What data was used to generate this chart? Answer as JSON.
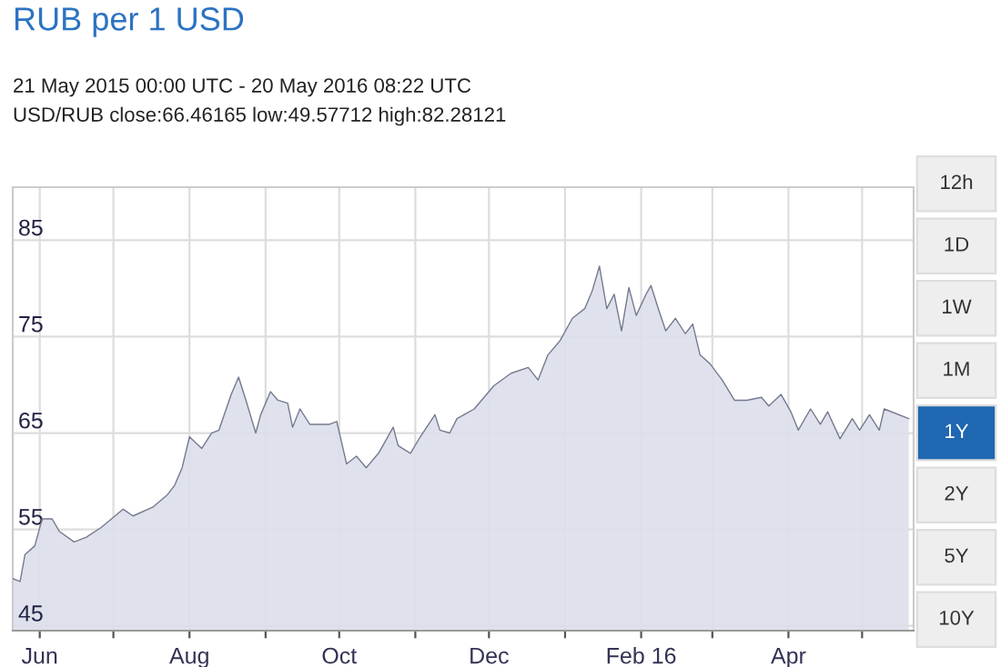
{
  "chart_data": [
    {
      "type": "area",
      "title": "RUB per 1 USD",
      "subtitle": "21 May 2015 00:00 UTC - 20 May 2016 08:22 UTC",
      "annotations": [
        "USD/RUB close:66.46165 low:49.57712 high:82.28121"
      ],
      "x": [
        "2015-05-21",
        "2015-05-24",
        "2015-05-26",
        "2015-05-30",
        "2015-06-02",
        "2015-06-06",
        "2015-06-09",
        "2015-06-15",
        "2015-06-20",
        "2015-06-26",
        "2015-07-05",
        "2015-07-09",
        "2015-07-17",
        "2015-07-23",
        "2015-07-26",
        "2015-07-29",
        "2015-08-01",
        "2015-08-06",
        "2015-08-10",
        "2015-08-13",
        "2015-08-18",
        "2015-08-21",
        "2015-08-24",
        "2015-08-28",
        "2015-08-30",
        "2015-09-03",
        "2015-09-06",
        "2015-09-10",
        "2015-09-12",
        "2015-09-15",
        "2015-09-19",
        "2015-09-27",
        "2015-09-30",
        "2015-10-04",
        "2015-10-08",
        "2015-10-12",
        "2015-10-17",
        "2015-10-23",
        "2015-10-25",
        "2015-10-30",
        "2015-11-03",
        "2015-11-09",
        "2015-11-11",
        "2015-11-15",
        "2015-11-18",
        "2015-11-25",
        "2015-12-03",
        "2015-12-10",
        "2015-12-17",
        "2015-12-21",
        "2015-12-25",
        "2015-12-30",
        "2016-01-04",
        "2016-01-09",
        "2016-01-12",
        "2016-01-15",
        "2016-01-18",
        "2016-01-21",
        "2016-01-24",
        "2016-01-27",
        "2016-01-30",
        "2016-02-03",
        "2016-02-05",
        "2016-02-08",
        "2016-02-11",
        "2016-02-15",
        "2016-02-19",
        "2016-02-22",
        "2016-02-25",
        "2016-02-29",
        "2016-03-05",
        "2016-03-10",
        "2016-03-15",
        "2016-03-21",
        "2016-03-24",
        "2016-03-29",
        "2016-04-02",
        "2016-04-05",
        "2016-04-10",
        "2016-04-14",
        "2016-04-17",
        "2016-04-22",
        "2016-04-27",
        "2016-04-30",
        "2016-05-04",
        "2016-05-08",
        "2016-05-10",
        "2016-05-20"
      ],
      "series": [
        {
          "color": "#747a8e",
          "values": [
            49.9,
            49.6,
            52.4,
            53.3,
            56.1,
            56.1,
            54.8,
            53.7,
            54.2,
            55.2,
            57.1,
            56.4,
            57.3,
            58.6,
            59.6,
            61.4,
            64.6,
            63.4,
            65.0,
            65.3,
            69.0,
            70.8,
            68.4,
            65.0,
            66.9,
            69.3,
            68.4,
            68.1,
            65.6,
            67.5,
            65.9,
            65.9,
            66.2,
            61.8,
            62.6,
            61.4,
            62.9,
            65.6,
            63.7,
            62.9,
            64.6,
            66.9,
            65.3,
            65.0,
            66.5,
            67.5,
            69.9,
            71.2,
            71.8,
            70.5,
            73.1,
            74.6,
            76.9,
            77.9,
            79.7,
            82.3,
            77.9,
            79.4,
            75.6,
            80.1,
            77.2,
            79.4,
            80.3,
            77.9,
            75.6,
            76.9,
            75.3,
            76.3,
            73.1,
            72.2,
            70.5,
            68.4,
            68.4,
            68.7,
            67.8,
            69.0,
            67.2,
            65.3,
            67.5,
            65.9,
            67.2,
            64.4,
            66.5,
            65.3,
            66.9,
            65.3,
            67.5,
            66.5
          ]
        }
      ],
      "xlim": [
        "2015-05-21",
        "2016-05-22"
      ],
      "xticks": [
        {
          "value": "2015-06-01",
          "label": "Jun"
        },
        {
          "value": "2015-07-01",
          "label": null
        },
        {
          "value": "2015-08-01",
          "label": "Aug"
        },
        {
          "value": "2015-09-01",
          "label": null
        },
        {
          "value": "2015-10-01",
          "label": "Oct"
        },
        {
          "value": "2015-11-01",
          "label": null
        },
        {
          "value": "2015-12-01",
          "label": "Dec"
        },
        {
          "value": "2016-01-01",
          "label": null
        },
        {
          "value": "2016-02-01",
          "label": "Feb 16"
        },
        {
          "value": "2016-03-01",
          "label": null
        },
        {
          "value": "2016-04-01",
          "label": "Apr"
        },
        {
          "value": "2016-05-01",
          "label": null
        }
      ],
      "ylim": [
        44.5,
        90.5
      ],
      "yticks": [
        45,
        55,
        65,
        75,
        85
      ],
      "grid": true
    },
    {
      "type": "other",
      "categories": [
        "12h",
        "1D",
        "1W",
        "1M",
        "1Y",
        "2Y",
        "5Y",
        "10Y"
      ],
      "colors": [
        "#eeeeee",
        "#eeeeee",
        "#eeeeee",
        "#eeeeee",
        "#1f67b1",
        "#eeeeee",
        "#eeeeee",
        "#eeeeee"
      ]
    }
  ]
}
